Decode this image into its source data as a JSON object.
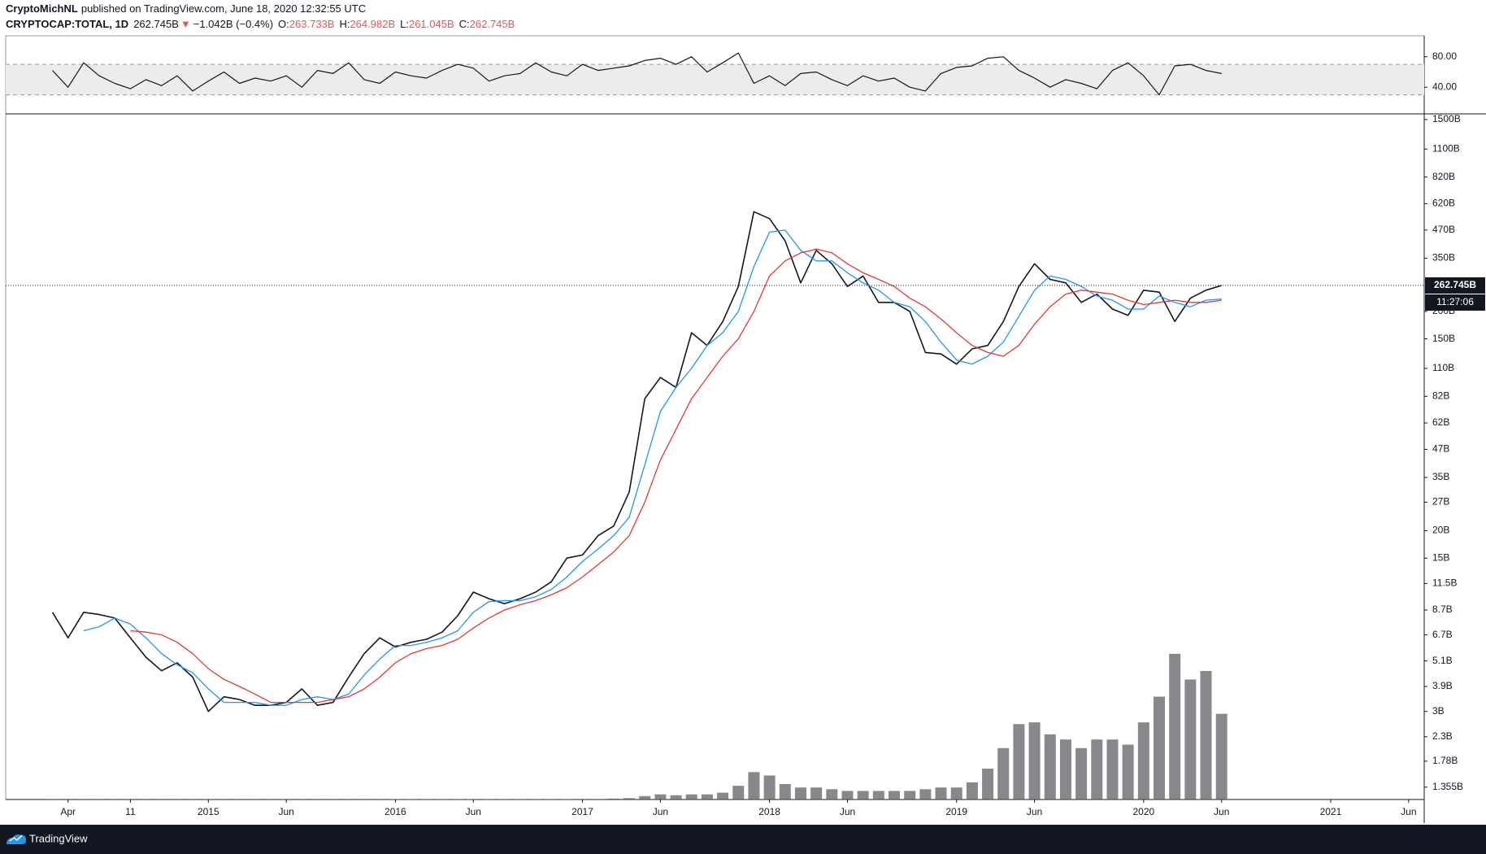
{
  "header": {
    "publisher": "CryptoMichNL",
    "published": "published on TradingView.com, June 18, 2020 12:32:55 UTC",
    "symbol": "CRYPTOCAP:TOTAL, 1D",
    "price": "262.745B",
    "change_arrow": "▼",
    "change": "−1.042B (−0.4%)",
    "ohlc": [
      {
        "label": "O:",
        "value": "263.733B"
      },
      {
        "label": "H:",
        "value": "264.982B"
      },
      {
        "label": "L:",
        "value": "261.045B"
      },
      {
        "label": "C:",
        "value": "262.745B"
      }
    ]
  },
  "chart_data": {
    "type": "line",
    "log_scale": true,
    "x": [
      "2014-03",
      "2014-04",
      "2014-05",
      "2014-06",
      "2014-07",
      "2014-08",
      "2014-09",
      "2014-10",
      "2014-11",
      "2014-12",
      "2015-01",
      "2015-02",
      "2015-03",
      "2015-04",
      "2015-05",
      "2015-06",
      "2015-07",
      "2015-08",
      "2015-09",
      "2015-10",
      "2015-11",
      "2015-12",
      "2016-01",
      "2016-02",
      "2016-03",
      "2016-04",
      "2016-05",
      "2016-06",
      "2016-07",
      "2016-08",
      "2016-09",
      "2016-10",
      "2016-11",
      "2016-12",
      "2017-01",
      "2017-02",
      "2017-03",
      "2017-04",
      "2017-05",
      "2017-06",
      "2017-07",
      "2017-08",
      "2017-09",
      "2017-10",
      "2017-11",
      "2017-12",
      "2018-01",
      "2018-02",
      "2018-03",
      "2018-04",
      "2018-05",
      "2018-06",
      "2018-07",
      "2018-08",
      "2018-09",
      "2018-10",
      "2018-11",
      "2018-12",
      "2019-01",
      "2019-02",
      "2019-03",
      "2019-04",
      "2019-05",
      "2019-06",
      "2019-07",
      "2019-08",
      "2019-09",
      "2019-10",
      "2019-11",
      "2019-12",
      "2020-01",
      "2020-02",
      "2020-03",
      "2020-04",
      "2020-05",
      "2020-06"
    ],
    "xlim": [
      "2013-12",
      "2021-07"
    ],
    "xticks": [
      {
        "value": "2014-04",
        "label": "Apr"
      },
      {
        "value": "2014-08",
        "label": "11"
      },
      {
        "value": "2015-01",
        "label": "2015"
      },
      {
        "value": "2015-06",
        "label": "Jun"
      },
      {
        "value": "2016-01",
        "label": "2016"
      },
      {
        "value": "2016-06",
        "label": "Jun"
      },
      {
        "value": "2017-01",
        "label": "2017"
      },
      {
        "value": "2017-06",
        "label": "Jun"
      },
      {
        "value": "2018-01",
        "label": "2018"
      },
      {
        "value": "2018-06",
        "label": "Jun"
      },
      {
        "value": "2019-01",
        "label": "2019"
      },
      {
        "value": "2019-06",
        "label": "Jun"
      },
      {
        "value": "2020-01",
        "label": "2020"
      },
      {
        "value": "2020-06",
        "label": "Jun"
      },
      {
        "value": "2021-01",
        "label": "2021"
      },
      {
        "value": "2021-06",
        "label": "Jun"
      }
    ],
    "ylim": [
      1.19,
      1592
    ],
    "yticks": [
      {
        "value": 1.355,
        "label": "1.355B"
      },
      {
        "value": 1.78,
        "label": "1.78B"
      },
      {
        "value": 2.3,
        "label": "2.3B"
      },
      {
        "value": 3,
        "label": "3B"
      },
      {
        "value": 3.9,
        "label": "3.9B"
      },
      {
        "value": 5.1,
        "label": "5.1B"
      },
      {
        "value": 6.7,
        "label": "6.7B"
      },
      {
        "value": 8.7,
        "label": "8.7B"
      },
      {
        "value": 11.5,
        "label": "11.5B"
      },
      {
        "value": 15,
        "label": "15B"
      },
      {
        "value": 20,
        "label": "20B"
      },
      {
        "value": 27,
        "label": "27B"
      },
      {
        "value": 35,
        "label": "35B"
      },
      {
        "value": 47,
        "label": "47B"
      },
      {
        "value": 62,
        "label": "62B"
      },
      {
        "value": 82,
        "label": "82B"
      },
      {
        "value": 110,
        "label": "110B"
      },
      {
        "value": 150,
        "label": "150B"
      },
      {
        "value": 200,
        "label": "200B"
      },
      {
        "value": 350,
        "label": "350B"
      },
      {
        "value": 470,
        "label": "470B"
      },
      {
        "value": 620,
        "label": "620B"
      },
      {
        "value": 820,
        "label": "820B"
      },
      {
        "value": 1100,
        "label": "1100B"
      },
      {
        "value": 1500,
        "label": "1500B"
      }
    ],
    "series": [
      {
        "color": "#131722",
        "values": [
          8.5,
          6.5,
          8.5,
          8.3,
          8.0,
          6.5,
          5.3,
          4.6,
          5.0,
          4.3,
          3.0,
          3.5,
          3.4,
          3.2,
          3.2,
          3.3,
          3.8,
          3.2,
          3.3,
          4.3,
          5.5,
          6.5,
          5.9,
          6.2,
          6.4,
          6.9,
          8.2,
          10.5,
          9.8,
          9.3,
          9.8,
          10.5,
          11.7,
          15,
          15.5,
          19,
          21,
          30,
          80,
          100,
          90,
          160,
          140,
          180,
          260,
          570,
          530,
          420,
          270,
          380,
          330,
          260,
          290,
          220,
          220,
          200,
          130,
          128,
          115,
          135,
          140,
          180,
          260,
          330,
          280,
          270,
          220,
          240,
          205,
          192,
          250,
          245,
          180,
          230,
          250,
          262.745
        ]
      },
      {
        "color": "#2196f3",
        "values": [
          null,
          null,
          7.0,
          7.3,
          8.0,
          7.5,
          6.5,
          5.5,
          4.9,
          4.5,
          3.8,
          3.3,
          3.3,
          3.3,
          3.2,
          3.2,
          3.4,
          3.5,
          3.4,
          3.6,
          4.4,
          5.2,
          6.0,
          6.0,
          6.2,
          6.5,
          7.0,
          8.5,
          9.5,
          9.6,
          9.6,
          10.0,
          10.8,
          12.3,
          14.5,
          16.5,
          19,
          23,
          40,
          70,
          90,
          110,
          140,
          160,
          200,
          320,
          460,
          470,
          380,
          340,
          340,
          300,
          270,
          250,
          220,
          210,
          180,
          145,
          120,
          115,
          125,
          145,
          190,
          250,
          290,
          280,
          260,
          235,
          225,
          205,
          205,
          235,
          220,
          210,
          225,
          228
        ]
      },
      {
        "color": "#e53935",
        "values": [
          null,
          null,
          null,
          null,
          null,
          7.0,
          6.9,
          6.7,
          6.2,
          5.5,
          4.7,
          4.2,
          3.9,
          3.6,
          3.3,
          3.3,
          3.3,
          3.3,
          3.4,
          3.5,
          3.8,
          4.3,
          5.0,
          5.5,
          5.8,
          6.0,
          6.4,
          7.2,
          8.0,
          8.7,
          9.2,
          9.6,
          10.2,
          11.0,
          12.3,
          14,
          16,
          19,
          27,
          42,
          58,
          80,
          100,
          125,
          150,
          200,
          290,
          340,
          370,
          385,
          370,
          330,
          300,
          280,
          260,
          230,
          210,
          185,
          160,
          140,
          130,
          125,
          140,
          175,
          210,
          240,
          250,
          245,
          240,
          225,
          215,
          220,
          225,
          220,
          220,
          225
        ]
      }
    ],
    "last_price": {
      "value": 262.745,
      "label": "262.745B"
    },
    "countdown": "11:27:06",
    "volume": {
      "color": "#5d6066",
      "ylim": [
        0,
        100
      ],
      "values": [
        0.1,
        0.1,
        0.1,
        0.1,
        0.1,
        0.1,
        0.1,
        0.1,
        0.1,
        0.1,
        0.1,
        0.1,
        0.1,
        0.1,
        0.1,
        0.1,
        0.1,
        0.1,
        0.1,
        0.1,
        0.1,
        0.1,
        0.2,
        0.2,
        0.2,
        0.2,
        0.2,
        0.2,
        0.2,
        0.2,
        0.2,
        0.2,
        0.2,
        0.2,
        0.3,
        0.3,
        0.5,
        0.8,
        2,
        3,
        2.5,
        3,
        3,
        4,
        8,
        16,
        14,
        9,
        7,
        7,
        6,
        5,
        5,
        5,
        5,
        5,
        6,
        7,
        7,
        10,
        18,
        30,
        44,
        45,
        38,
        35,
        30,
        35,
        35,
        32,
        45,
        60,
        85,
        70,
        75,
        50
      ]
    },
    "rsi": {
      "color": "#131722",
      "ylim": [
        5,
        107.5
      ],
      "band": [
        30,
        70
      ],
      "yticks": [
        {
          "value": 40,
          "label": "40.00"
        },
        {
          "value": 80,
          "label": "80.00"
        }
      ],
      "values": [
        62,
        40,
        72,
        55,
        45,
        38,
        50,
        42,
        55,
        35,
        48,
        60,
        45,
        52,
        48,
        55,
        40,
        62,
        58,
        72,
        50,
        45,
        60,
        55,
        52,
        62,
        70,
        65,
        48,
        55,
        58,
        72,
        60,
        55,
        70,
        62,
        65,
        68,
        75,
        78,
        70,
        80,
        60,
        72,
        85,
        45,
        55,
        42,
        58,
        60,
        50,
        42,
        55,
        48,
        52,
        40,
        35,
        58,
        66,
        68,
        78,
        80,
        62,
        52,
        40,
        50,
        45,
        38,
        62,
        72,
        55,
        30,
        68,
        70,
        62,
        58
      ]
    }
  },
  "footer": {
    "brand": "TradingView"
  }
}
